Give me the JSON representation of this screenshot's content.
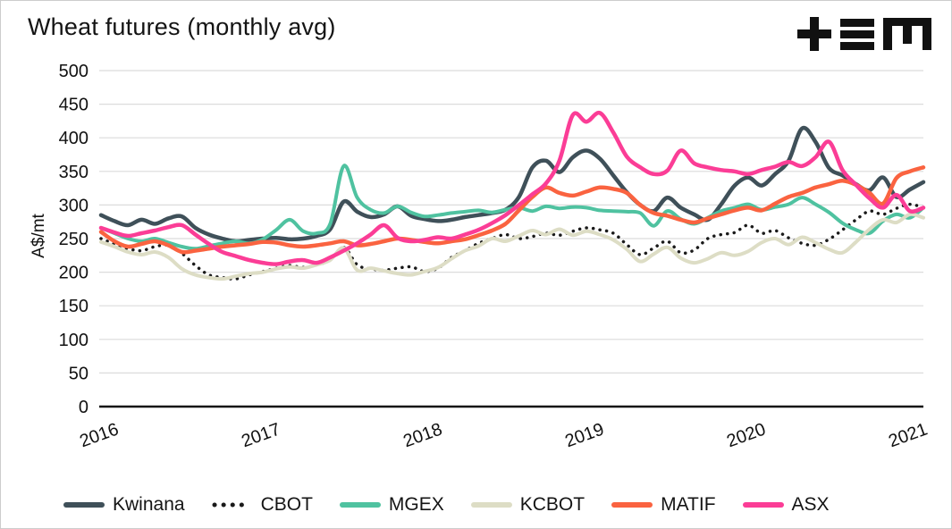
{
  "header": {
    "title": "Wheat futures (monthly avg)",
    "logo_name": "tem-logo"
  },
  "chart_data": {
    "type": "line",
    "title": "Wheat futures (monthly avg)",
    "xlabel": "",
    "ylabel": "A$/mt",
    "ylim": [
      0,
      500
    ],
    "ytick_interval": 50,
    "grid": "horizontal",
    "legend_position": "bottom",
    "x_tick_labels": [
      "2016",
      "2017",
      "2018",
      "2019",
      "2020",
      "2021"
    ],
    "months": [
      "2016-01",
      "2016-02",
      "2016-03",
      "2016-04",
      "2016-05",
      "2016-06",
      "2016-07",
      "2016-08",
      "2016-09",
      "2016-10",
      "2016-11",
      "2016-12",
      "2017-01",
      "2017-02",
      "2017-03",
      "2017-04",
      "2017-05",
      "2017-06",
      "2017-07",
      "2017-08",
      "2017-09",
      "2017-10",
      "2017-11",
      "2017-12",
      "2018-01",
      "2018-02",
      "2018-03",
      "2018-04",
      "2018-05",
      "2018-06",
      "2018-07",
      "2018-08",
      "2018-09",
      "2018-10",
      "2018-11",
      "2018-12",
      "2019-01",
      "2019-02",
      "2019-03",
      "2019-04",
      "2019-05",
      "2019-06",
      "2019-07",
      "2019-08",
      "2019-09",
      "2019-10",
      "2019-11",
      "2019-12",
      "2020-01",
      "2020-02",
      "2020-03",
      "2020-04",
      "2020-05",
      "2020-06",
      "2020-07",
      "2020-08",
      "2020-09",
      "2020-10",
      "2020-11",
      "2020-12",
      "2021-01",
      "2021-02"
    ],
    "series": [
      {
        "name": "Kwinana",
        "color": "#3f5059",
        "style": "solid",
        "width": 4.5,
        "values": [
          285,
          276,
          270,
          278,
          272,
          280,
          283,
          266,
          256,
          250,
          246,
          248,
          250,
          251,
          249,
          250,
          254,
          264,
          305,
          290,
          282,
          286,
          298,
          284,
          279,
          276,
          278,
          282,
          285,
          288,
          293,
          312,
          356,
          366,
          349,
          371,
          381,
          369,
          344,
          319,
          300,
          291,
          311,
          296,
          286,
          278,
          301,
          329,
          341,
          329,
          346,
          366,
          414,
          394,
          355,
          344,
          331,
          322,
          341,
          312,
          323,
          334
        ]
      },
      {
        "name": "CBOT",
        "color": "#1a1a1a",
        "style": "dotted",
        "width": 3.5,
        "values": [
          250,
          242,
          235,
          232,
          238,
          240,
          228,
          210,
          196,
          192,
          190,
          196,
          201,
          206,
          210,
          207,
          211,
          218,
          237,
          211,
          205,
          203,
          206,
          208,
          201,
          206,
          222,
          232,
          243,
          250,
          256,
          250,
          253,
          258,
          255,
          261,
          266,
          263,
          258,
          241,
          226,
          236,
          246,
          229,
          233,
          250,
          256,
          259,
          270,
          258,
          262,
          251,
          243,
          240,
          249,
          263,
          278,
          291,
          286,
          295,
          301,
          296
        ]
      },
      {
        "name": "MGEX",
        "color": "#4fc2a0",
        "style": "solid",
        "width": 4,
        "values": [
          266,
          258,
          250,
          246,
          250,
          244,
          238,
          235,
          239,
          243,
          246,
          243,
          249,
          263,
          278,
          261,
          258,
          272,
          358,
          311,
          293,
          288,
          298,
          289,
          283,
          285,
          288,
          290,
          292,
          289,
          293,
          296,
          291,
          298,
          295,
          297,
          296,
          292,
          291,
          290,
          288,
          269,
          291,
          279,
          272,
          281,
          291,
          296,
          301,
          293,
          297,
          301,
          311,
          301,
          289,
          273,
          263,
          258,
          276,
          286,
          281,
          296
        ]
      },
      {
        "name": "KCBOT",
        "color": "#ddddc5",
        "style": "solid",
        "width": 4,
        "values": [
          245,
          238,
          230,
          226,
          230,
          222,
          205,
          196,
          192,
          190,
          194,
          198,
          200,
          205,
          208,
          206,
          211,
          218,
          236,
          203,
          206,
          202,
          198,
          196,
          201,
          207,
          220,
          232,
          239,
          250,
          246,
          254,
          262,
          256,
          264,
          255,
          261,
          256,
          248,
          234,
          216,
          227,
          237,
          221,
          214,
          220,
          229,
          225,
          231,
          244,
          250,
          241,
          252,
          244,
          234,
          229,
          245,
          264,
          278,
          274,
          286,
          281
        ]
      },
      {
        "name": "MATIF",
        "color": "#fa6340",
        "style": "solid",
        "width": 4.5,
        "values": [
          260,
          246,
          238,
          242,
          246,
          240,
          230,
          232,
          235,
          238,
          240,
          242,
          245,
          244,
          240,
          238,
          240,
          243,
          246,
          240,
          242,
          246,
          250,
          248,
          245,
          243,
          246,
          249,
          255,
          262,
          272,
          292,
          312,
          326,
          318,
          314,
          320,
          326,
          324,
          318,
          300,
          288,
          284,
          278,
          274,
          280,
          286,
          292,
          296,
          292,
          302,
          312,
          318,
          326,
          331,
          336,
          330,
          318,
          302,
          340,
          350,
          356
        ]
      },
      {
        "name": "ASX",
        "color": "#fb3d96",
        "style": "solid",
        "width": 4.5,
        "values": [
          266,
          259,
          254,
          258,
          262,
          267,
          270,
          256,
          242,
          230,
          224,
          218,
          214,
          212,
          216,
          218,
          214,
          222,
          232,
          243,
          256,
          270,
          251,
          246,
          248,
          252,
          250,
          256,
          263,
          273,
          285,
          300,
          316,
          332,
          366,
          434,
          424,
          437,
          408,
          372,
          356,
          346,
          351,
          381,
          362,
          356,
          352,
          350,
          346,
          352,
          357,
          364,
          358,
          371,
          394,
          352,
          330,
          310,
          296,
          315,
          291,
          296
        ]
      }
    ]
  },
  "colors": {
    "gridline": "#dcdcdc",
    "axis": "#111111",
    "text": "#111111",
    "background": "#ffffff",
    "logo": "#111111"
  }
}
